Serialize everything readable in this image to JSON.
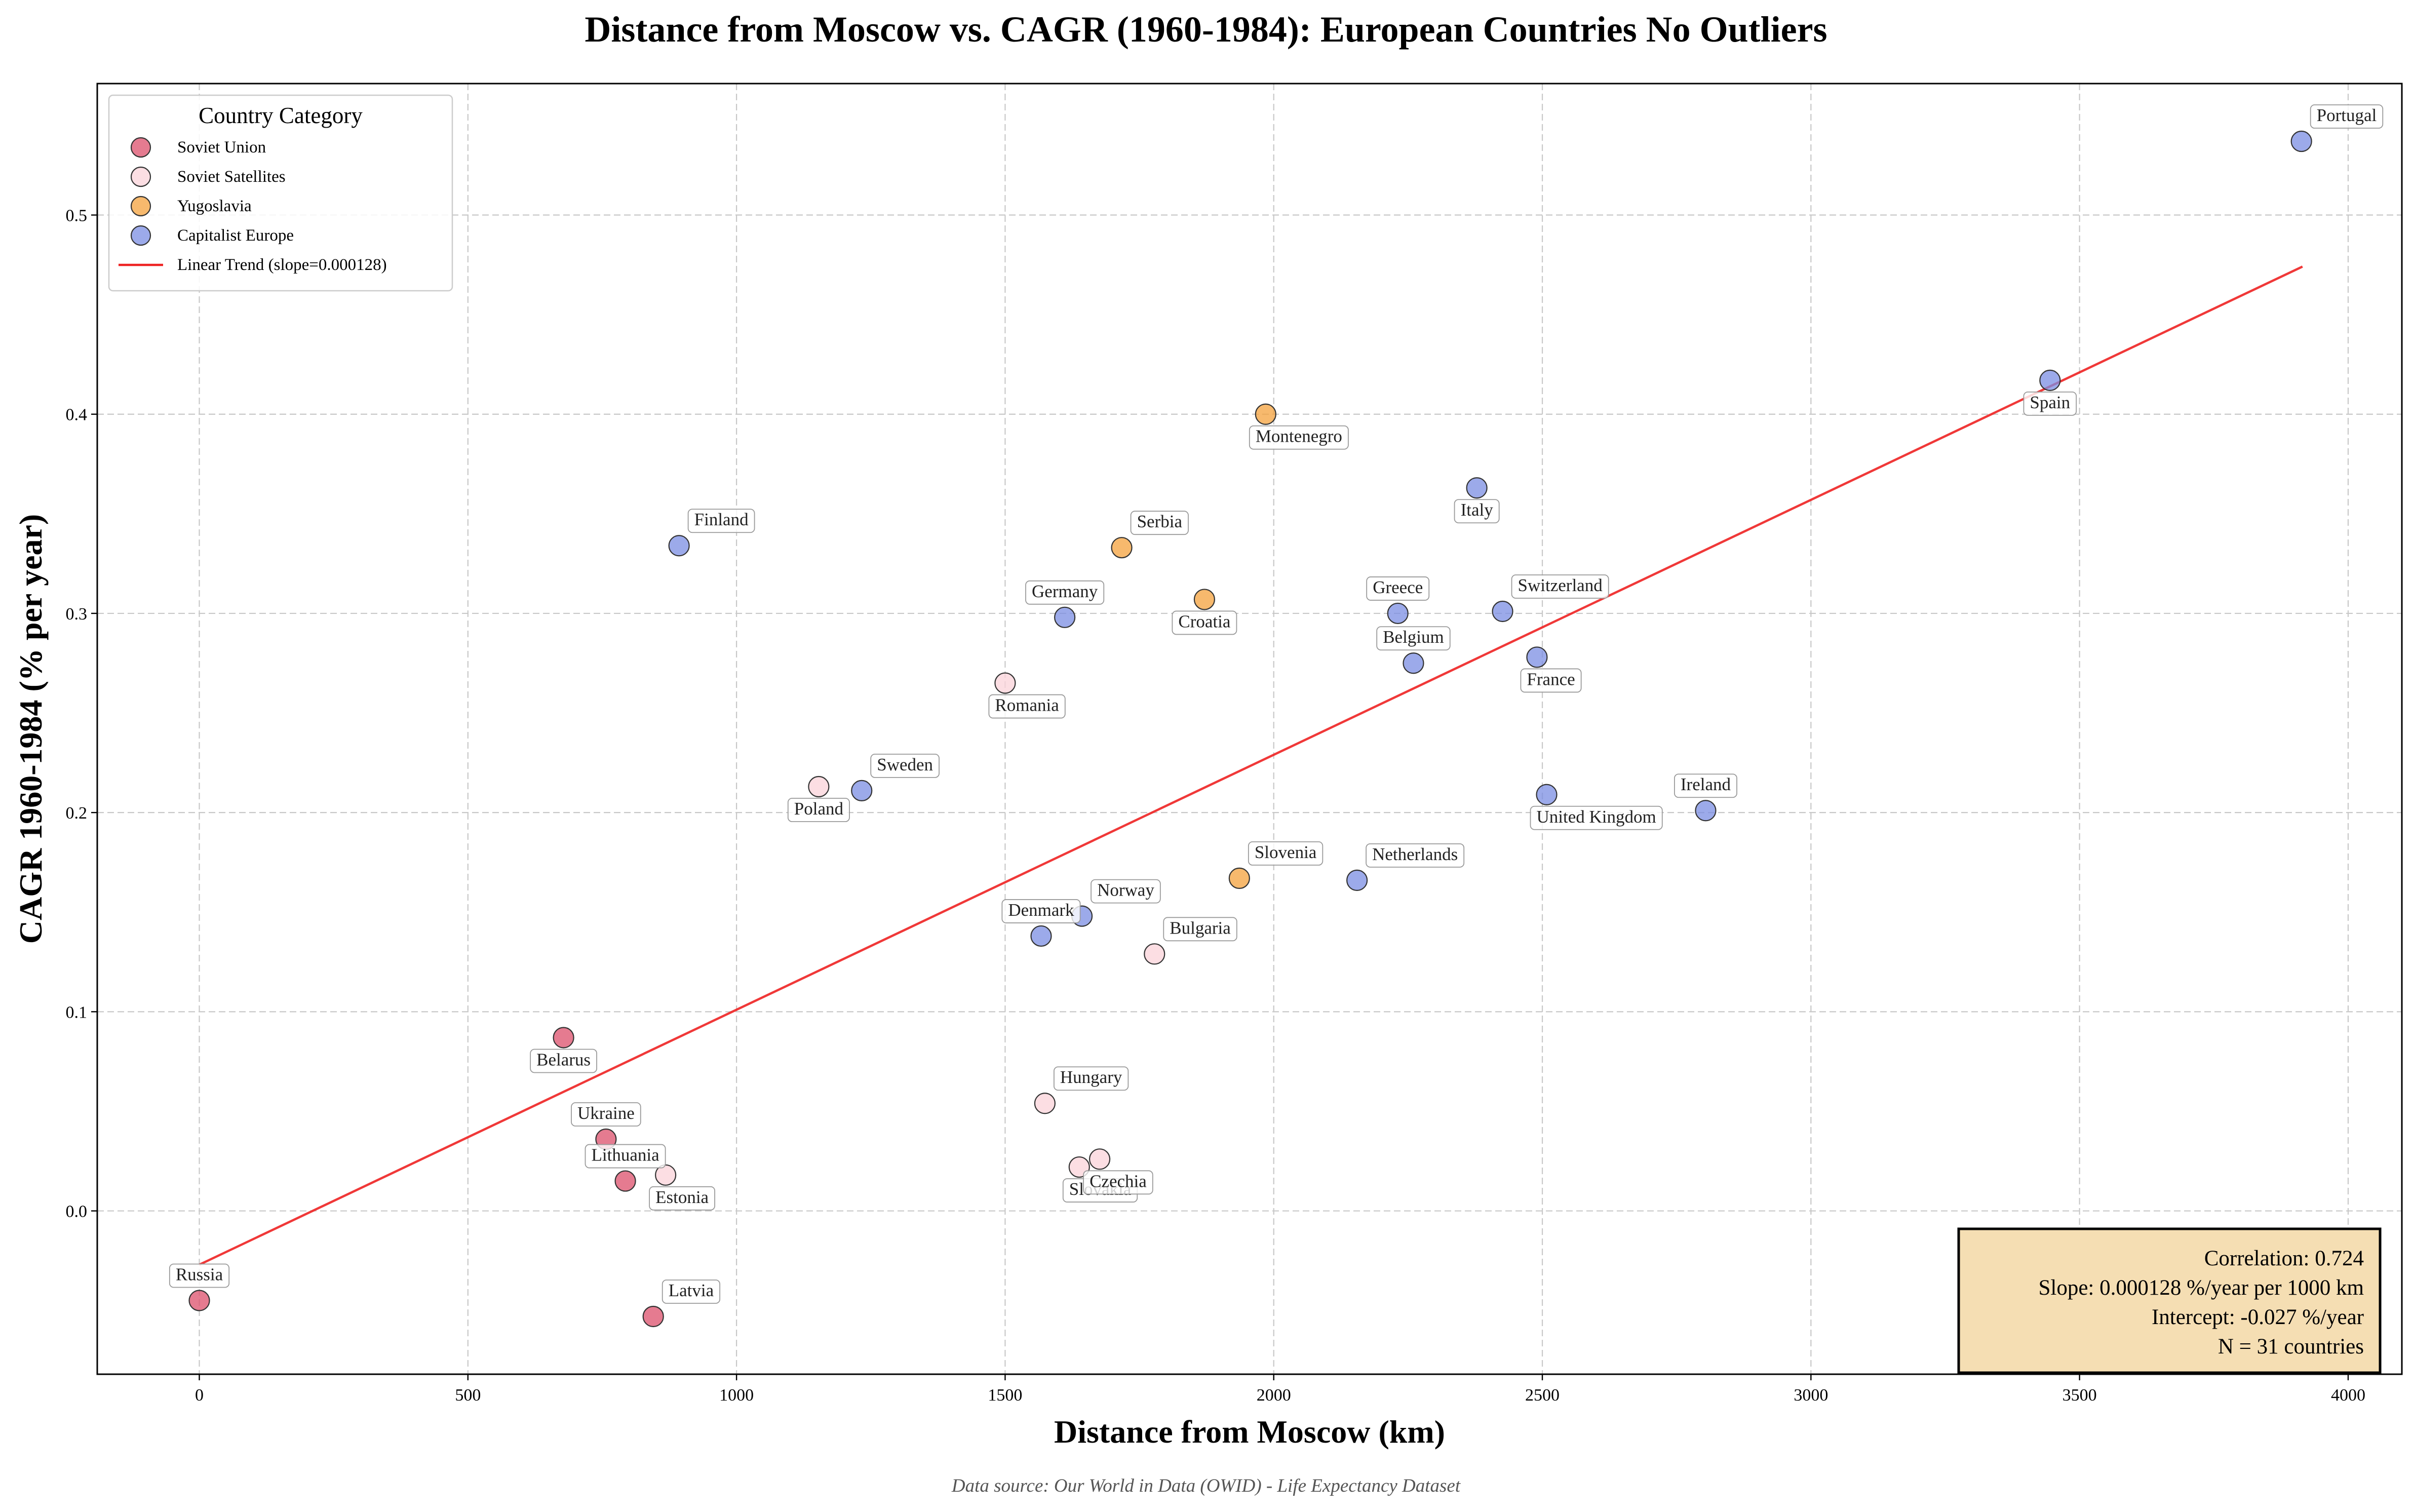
{
  "chart_data": {
    "type": "scatter",
    "title": "Distance from Moscow vs. CAGR (1960-1984): European Countries No Outliers",
    "xlabel": "Distance from Moscow (km)",
    "ylabel": "CAGR 1960-1984 (% per year)",
    "xlim": [
      -190,
      4100
    ],
    "ylim": [
      -0.082,
      0.566
    ],
    "xticks": [
      0,
      500,
      1000,
      1500,
      2000,
      2500,
      3000,
      3500,
      4000
    ],
    "xtick_labels": [
      "0",
      "500",
      "1000",
      "1500",
      "2000",
      "2500",
      "3000",
      "3500",
      "4000"
    ],
    "yticks": [
      0.0,
      0.1,
      0.2,
      0.3,
      0.4,
      0.5
    ],
    "ytick_labels": [
      "0.0",
      "0.1",
      "0.2",
      "0.3",
      "0.4",
      "0.5"
    ],
    "grid": true,
    "legend_position": "top-left",
    "legend_title": "Country Category",
    "categories": [
      {
        "name": "Soviet Union",
        "color": "#dc4f6b"
      },
      {
        "name": "Soviet Satellites",
        "color": "#fbd3d9"
      },
      {
        "name": "Yugoslavia",
        "color": "#f4a23c"
      },
      {
        "name": "Capitalist Europe",
        "color": "#7b8ee3"
      }
    ],
    "trend": {
      "label": "Linear Trend (slope=0.000128)",
      "color": "#ee2222",
      "slope_per_km": 0.000128,
      "intercept": -0.027,
      "x_range": [
        0,
        3915
      ]
    },
    "points": [
      {
        "country": "Russia",
        "x": 0,
        "y": -0.045,
        "category": 0
      },
      {
        "country": "Belarus",
        "x": 678,
        "y": 0.087,
        "category": 0
      },
      {
        "country": "Ukraine",
        "x": 757,
        "y": 0.036,
        "category": 0
      },
      {
        "country": "Lithuania",
        "x": 793,
        "y": 0.015,
        "category": 0
      },
      {
        "country": "Latvia",
        "x": 845,
        "y": -0.053,
        "category": 0
      },
      {
        "country": "Estonia",
        "x": 868,
        "y": 0.018,
        "category": 1
      },
      {
        "country": "Poland",
        "x": 1153,
        "y": 0.213,
        "category": 1
      },
      {
        "country": "Romania",
        "x": 1500,
        "y": 0.265,
        "category": 1
      },
      {
        "country": "Hungary",
        "x": 1574,
        "y": 0.054,
        "category": 1
      },
      {
        "country": "Slovakia",
        "x": 1638,
        "y": 0.022,
        "category": 1
      },
      {
        "country": "Czechia",
        "x": 1676,
        "y": 0.026,
        "category": 1
      },
      {
        "country": "Bulgaria",
        "x": 1778,
        "y": 0.129,
        "category": 1
      },
      {
        "country": "Serbia",
        "x": 1717,
        "y": 0.333,
        "category": 2
      },
      {
        "country": "Croatia",
        "x": 1871,
        "y": 0.307,
        "category": 2
      },
      {
        "country": "Slovenia",
        "x": 1936,
        "y": 0.167,
        "category": 2
      },
      {
        "country": "Montenegro",
        "x": 1985,
        "y": 0.4,
        "category": 2
      },
      {
        "country": "Finland",
        "x": 893,
        "y": 0.334,
        "category": 3
      },
      {
        "country": "Sweden",
        "x": 1233,
        "y": 0.211,
        "category": 3
      },
      {
        "country": "Denmark",
        "x": 1567,
        "y": 0.138,
        "category": 3
      },
      {
        "country": "Germany",
        "x": 1611,
        "y": 0.298,
        "category": 3
      },
      {
        "country": "Norway",
        "x": 1643,
        "y": 0.148,
        "category": 3
      },
      {
        "country": "Netherlands",
        "x": 2155,
        "y": 0.166,
        "category": 3
      },
      {
        "country": "Greece",
        "x": 2231,
        "y": 0.3,
        "category": 3
      },
      {
        "country": "Belgium",
        "x": 2260,
        "y": 0.275,
        "category": 3
      },
      {
        "country": "Italy",
        "x": 2378,
        "y": 0.363,
        "category": 3
      },
      {
        "country": "Switzerland",
        "x": 2426,
        "y": 0.301,
        "category": 3
      },
      {
        "country": "France",
        "x": 2490,
        "y": 0.278,
        "category": 3
      },
      {
        "country": "United Kingdom",
        "x": 2508,
        "y": 0.209,
        "category": 3
      },
      {
        "country": "Ireland",
        "x": 2804,
        "y": 0.201,
        "category": 3
      },
      {
        "country": "Spain",
        "x": 3445,
        "y": 0.417,
        "category": 3
      },
      {
        "country": "Portugal",
        "x": 3913,
        "y": 0.537,
        "category": 3
      }
    ],
    "stats": {
      "correlation": "Correlation: 0.724",
      "slope": "Slope: 0.000128 %/year per 1000 km",
      "intercept": "Intercept: -0.027 %/year",
      "n": "N = 31 countries"
    }
  },
  "footer": {
    "source": "Data source: Our World in Data (OWID) - Life Expectancy Dataset"
  }
}
